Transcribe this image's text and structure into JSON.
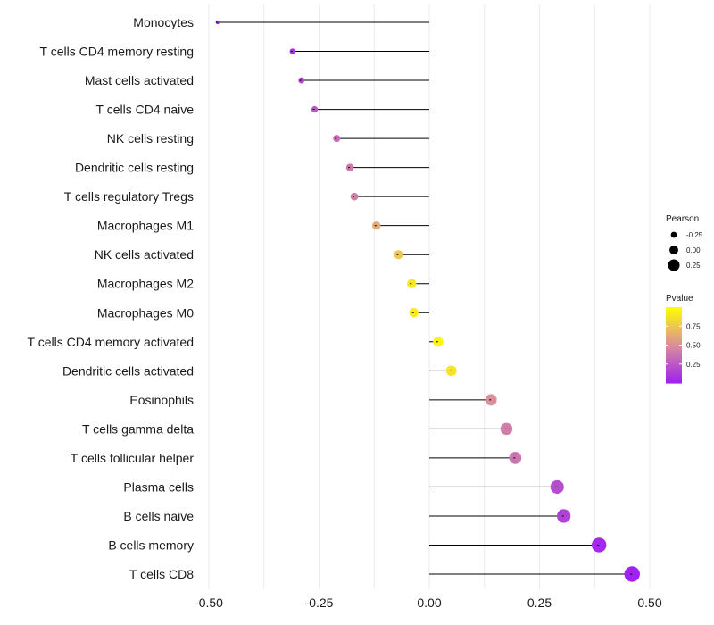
{
  "chart_data": {
    "type": "lollipop",
    "xlim": [
      -0.5,
      0.5
    ],
    "x_ticks": [
      -0.5,
      -0.25,
      0.0,
      0.25,
      0.5
    ],
    "x_tick_labels": [
      "-0.50",
      "-0.25",
      "0.00",
      "0.25",
      "0.50"
    ],
    "grid": true,
    "categories": [
      "Monocytes",
      "T cells CD4 memory resting",
      "Mast cells activated",
      "T cells CD4 naive",
      "NK cells resting",
      "Dendritic cells resting",
      "T cells regulatory  Tregs ",
      "Macrophages M1",
      "NK cells activated",
      "Macrophages M2",
      "Macrophages M0",
      "T cells CD4 memory activated",
      "Dendritic cells activated",
      "Eosinophils",
      "T cells gamma delta",
      "T cells follicular helper",
      "Plasma cells",
      "B cells naive",
      "B cells memory",
      "T cells CD8"
    ],
    "pearson": [
      -0.48,
      -0.31,
      -0.29,
      -0.26,
      -0.21,
      -0.18,
      -0.17,
      -0.12,
      -0.07,
      -0.04,
      -0.035,
      0.02,
      0.05,
      0.14,
      0.175,
      0.195,
      0.29,
      0.305,
      0.385,
      0.46
    ],
    "pvalue": [
      0.02,
      0.12,
      0.18,
      0.25,
      0.35,
      0.4,
      0.42,
      0.62,
      0.75,
      0.9,
      0.92,
      0.97,
      0.88,
      0.5,
      0.42,
      0.38,
      0.2,
      0.15,
      0.04,
      0.01
    ],
    "legend_size": {
      "title": "Pearson",
      "entries": [
        {
          "label": "-0.25",
          "value": -0.25
        },
        {
          "label": "0.00",
          "value": 0.0
        },
        {
          "label": "0.25",
          "value": 0.25
        }
      ]
    },
    "legend_color": {
      "title": "Pvalue",
      "ticks": [
        {
          "label": "0.75",
          "value": 0.75
        },
        {
          "label": "0.50",
          "value": 0.5
        },
        {
          "label": "0.25",
          "value": 0.25
        }
      ],
      "low_color": "#a020f0",
      "mid_color": "#d8909a",
      "high_color": "#ffff00"
    }
  }
}
